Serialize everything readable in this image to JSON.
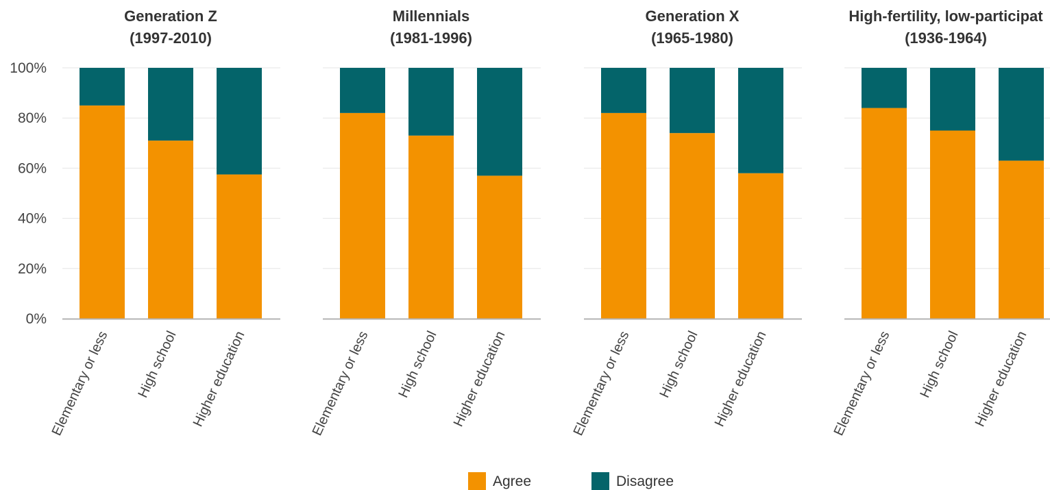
{
  "chart_data": {
    "type": "bar",
    "stacked": true,
    "ylim": [
      0,
      100
    ],
    "yticks": [
      "0%",
      "20%",
      "40%",
      "60%",
      "80%",
      "100%"
    ],
    "categories": [
      "Elementary or less",
      "High school",
      "Higher education"
    ],
    "legend": {
      "placement": "bottom",
      "entries": [
        "Agree",
        "Disagree"
      ]
    },
    "colors": {
      "Agree": "#f39200",
      "Disagree": "#04646a",
      "grid": "#e6e6e6",
      "axis": "#b3b3b3"
    },
    "grid": true,
    "panels": [
      {
        "title_line1": "Generation Z",
        "title_line2": "(1997-2010)",
        "series": [
          {
            "name": "Agree",
            "values": [
              85,
              71,
              57.5
            ]
          },
          {
            "name": "Disagree",
            "values": [
              15,
              29,
              42.5
            ]
          }
        ]
      },
      {
        "title_line1": "Millennials",
        "title_line2": "(1981-1996)",
        "series": [
          {
            "name": "Agree",
            "values": [
              82,
              73,
              57
            ]
          },
          {
            "name": "Disagree",
            "values": [
              18,
              27,
              43
            ]
          }
        ]
      },
      {
        "title_line1": "Generation X",
        "title_line2": "(1965-1980)",
        "series": [
          {
            "name": "Agree",
            "values": [
              82,
              74,
              58
            ]
          },
          {
            "name": "Disagree",
            "values": [
              18,
              26,
              42
            ]
          }
        ]
      },
      {
        "title_line1": "High-fertility, low-participat",
        "title_line2": "(1936-1964)",
        "series": [
          {
            "name": "Agree",
            "values": [
              84,
              75,
              63
            ]
          },
          {
            "name": "Disagree",
            "values": [
              16,
              25,
              37
            ]
          }
        ]
      }
    ]
  }
}
